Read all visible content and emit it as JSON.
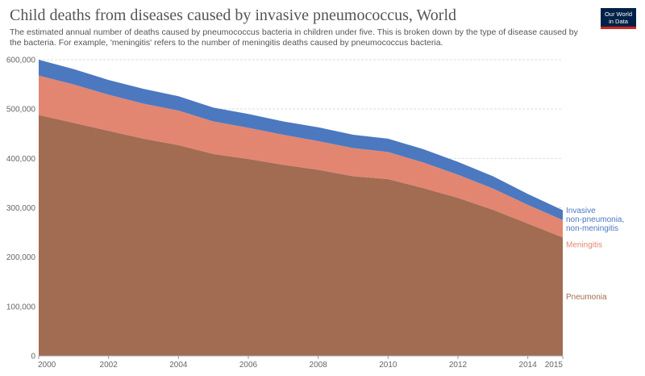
{
  "title": "Child deaths from diseases caused by invasive pneumococcus, World",
  "subtitle": "The estimated annual number of deaths caused by pneumococcus bacteria in children under five. This is broken down by the type of disease caused by the bacteria. For example, 'meningitis' refers to the number of meningitis deaths caused by pneumococcus bacteria.",
  "logo": {
    "line1": "Our World",
    "line2": "in Data"
  },
  "chart_data": {
    "type": "area",
    "stacked": true,
    "x": [
      2000,
      2001,
      2002,
      2003,
      2004,
      2005,
      2006,
      2007,
      2008,
      2009,
      2010,
      2011,
      2012,
      2013,
      2014,
      2015
    ],
    "xticks": [
      "2000",
      "2002",
      "2004",
      "2006",
      "2008",
      "2010",
      "2012",
      "2014",
      "2015"
    ],
    "yticks": [
      "0",
      "100,000",
      "200,000",
      "300,000",
      "400,000",
      "500,000",
      "600,000"
    ],
    "ylim": [
      0,
      600000
    ],
    "grid": true,
    "series": [
      {
        "name": "Pneumonia",
        "color": "#a26c53",
        "values": [
          488000,
          472000,
          456000,
          440000,
          427000,
          409000,
          399000,
          387000,
          377000,
          364000,
          358000,
          340000,
          320000,
          296000,
          268000,
          240000
        ]
      },
      {
        "name": "Meningitis",
        "color": "#e28671",
        "values": [
          80000,
          78000,
          73000,
          71000,
          70000,
          66000,
          63000,
          61000,
          58000,
          57000,
          55000,
          52000,
          47000,
          43000,
          38000,
          35000
        ]
      },
      {
        "name": "Invasive non-pneumonia, non-meningitis",
        "color": "#4c78c0",
        "values": [
          32000,
          31000,
          30000,
          30000,
          29000,
          28000,
          28000,
          27000,
          28000,
          27000,
          27000,
          27000,
          26000,
          25000,
          22000,
          20000
        ]
      }
    ],
    "legend_labels": [
      {
        "series": 2,
        "lines": [
          "Invasive",
          "non-pneumonia,",
          "non-meningitis"
        ]
      },
      {
        "series": 1,
        "lines": [
          "Meningitis"
        ]
      },
      {
        "series": 0,
        "lines": [
          "Pneumonia"
        ]
      }
    ]
  }
}
